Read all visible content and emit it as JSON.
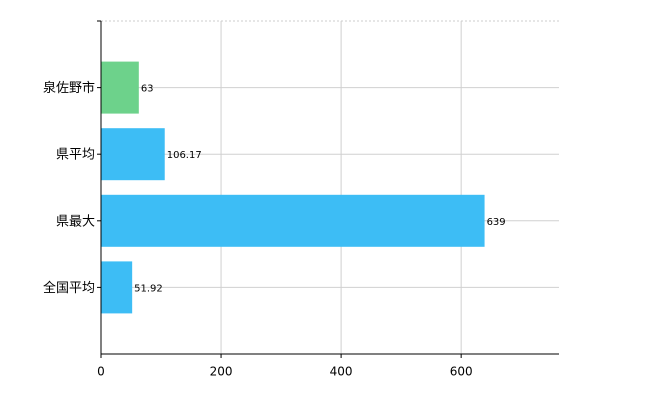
{
  "chart_data": {
    "type": "bar",
    "orientation": "horizontal",
    "categories": [
      "泉佐野市",
      "県平均",
      "県最大",
      "全国平均"
    ],
    "values": [
      63,
      106.17,
      639,
      51.92
    ],
    "colors": [
      "#6dd28b",
      "#3dbdf5",
      "#3dbdf5",
      "#3dbdf5"
    ],
    "xlim": [
      0,
      763
    ],
    "xticks": [
      0,
      200,
      400,
      600
    ],
    "grid": true
  }
}
